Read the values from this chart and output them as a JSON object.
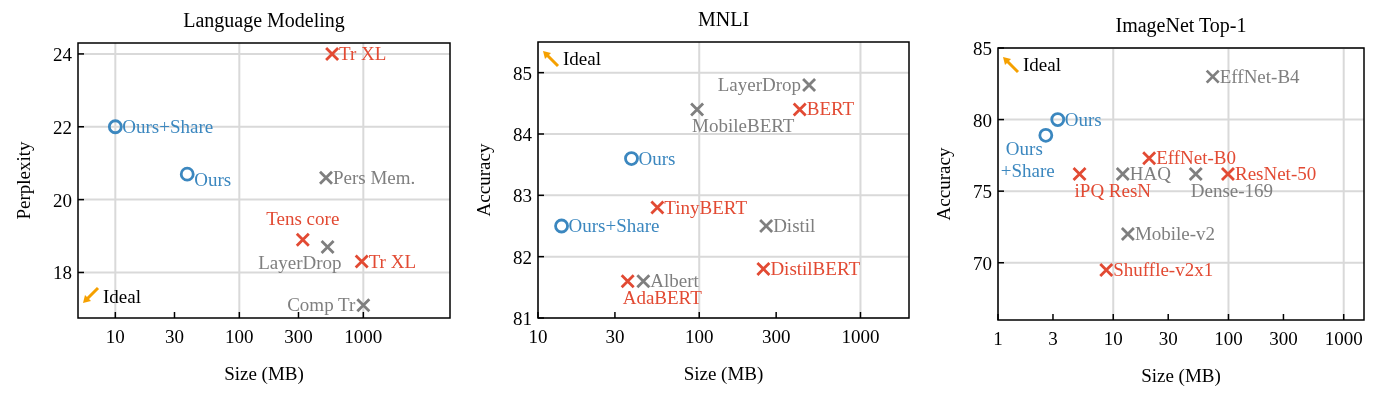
{
  "chart_data": [
    {
      "type": "scatter",
      "title": "Language Modeling",
      "xlabel": "Size (MB)",
      "ylabel": "Perplexity",
      "log": "x",
      "xlim": [
        5,
        5000
      ],
      "ylim": [
        16.75,
        24.3
      ],
      "xticks": [
        10,
        30,
        100,
        300,
        1000
      ],
      "yticks": [
        18,
        20,
        22,
        24
      ],
      "grid": true,
      "series": [
        {
          "name": "Ours+Share",
          "color": "#3b87bf",
          "marker": "circle",
          "x": [
            10
          ],
          "values": [
            22
          ]
        },
        {
          "name": "Ours",
          "color": "#3b87bf",
          "marker": "circle",
          "x": [
            38
          ],
          "values": [
            20.7
          ]
        },
        {
          "name": "Tr XL",
          "color": "#e24a33",
          "marker": "cross",
          "x": [
            560
          ],
          "values": [
            24
          ]
        },
        {
          "name": "Pers Mem.",
          "color": "#7f7f7f",
          "marker": "cross",
          "x": [
            500
          ],
          "values": [
            20.6
          ]
        },
        {
          "name": "Tens core",
          "color": "#e24a33",
          "marker": "cross",
          "x": [
            325
          ],
          "values": [
            18.9
          ]
        },
        {
          "name": "LayerDrop",
          "color": "#7f7f7f",
          "marker": "cross",
          "x": [
            515
          ],
          "values": [
            18.7
          ]
        },
        {
          "name": "Tr XL",
          "color": "#e24a33",
          "marker": "cross",
          "x": [
            970
          ],
          "values": [
            18.3
          ]
        },
        {
          "name": "Comp Tr",
          "color": "#7f7f7f",
          "marker": "cross",
          "x": [
            1000
          ],
          "values": [
            17.1
          ]
        }
      ],
      "annotations": [
        "Ideal"
      ]
    },
    {
      "type": "scatter",
      "title": "MNLI",
      "xlabel": "Size (MB)",
      "ylabel": "Accuracy",
      "log": "x",
      "xlim": [
        10,
        2000
      ],
      "ylim": [
        81,
        85.5
      ],
      "xticks": [
        10,
        30,
        100,
        300,
        1000
      ],
      "yticks": [
        81,
        82,
        83,
        84,
        85
      ],
      "grid": true,
      "series": [
        {
          "name": "Ours+Share",
          "color": "#3b87bf",
          "marker": "circle",
          "x": [
            14
          ],
          "values": [
            82.5
          ]
        },
        {
          "name": "Ours",
          "color": "#3b87bf",
          "marker": "circle",
          "x": [
            38
          ],
          "values": [
            83.6
          ]
        },
        {
          "name": "TinyBERT",
          "color": "#e24a33",
          "marker": "cross",
          "x": [
            55
          ],
          "values": [
            82.8
          ]
        },
        {
          "name": "AdaBERT",
          "color": "#e24a33",
          "marker": "cross",
          "x": [
            36
          ],
          "values": [
            81.6
          ]
        },
        {
          "name": "Albert",
          "color": "#7f7f7f",
          "marker": "cross",
          "x": [
            45
          ],
          "values": [
            81.6
          ]
        },
        {
          "name": "MobileBERT",
          "color": "#7f7f7f",
          "marker": "cross",
          "x": [
            97
          ],
          "values": [
            84.4
          ]
        },
        {
          "name": "LayerDrop",
          "color": "#7f7f7f",
          "marker": "cross",
          "x": [
            480
          ],
          "values": [
            84.8
          ]
        },
        {
          "name": "BERT",
          "color": "#e24a33",
          "marker": "cross",
          "x": [
            420
          ],
          "values": [
            84.4
          ]
        },
        {
          "name": "Distil",
          "color": "#7f7f7f",
          "marker": "cross",
          "x": [
            260
          ],
          "values": [
            82.5
          ]
        },
        {
          "name": "DistilBERT",
          "color": "#e24a33",
          "marker": "cross",
          "x": [
            250
          ],
          "values": [
            81.8
          ]
        }
      ],
      "annotations": [
        "Ideal"
      ]
    },
    {
      "type": "scatter",
      "title": "ImageNet Top-1",
      "xlabel": "Size (MB)",
      "ylabel": "Accuracy",
      "log": "x",
      "xlim": [
        1,
        1500
      ],
      "ylim": [
        66,
        85
      ],
      "xticks": [
        1,
        3,
        10,
        30,
        100,
        300,
        1000
      ],
      "yticks": [
        70,
        75,
        80,
        85
      ],
      "grid": true,
      "series": [
        {
          "name": "Ours",
          "color": "#3b87bf",
          "marker": "circle",
          "x": [
            3.3
          ],
          "values": [
            80.0
          ]
        },
        {
          "name": "Ours+Share",
          "color": "#3b87bf",
          "marker": "circle",
          "x": [
            2.6
          ],
          "values": [
            78.9
          ]
        },
        {
          "name": "iPQ ResN",
          "color": "#e24a33",
          "marker": "cross",
          "x": [
            5.1
          ],
          "values": [
            76.2
          ]
        },
        {
          "name": "EffNet-B0",
          "color": "#e24a33",
          "marker": "cross",
          "x": [
            20.5
          ],
          "values": [
            77.3
          ]
        },
        {
          "name": "HAQ",
          "color": "#7f7f7f",
          "marker": "cross",
          "x": [
            12.1
          ],
          "values": [
            76.2
          ]
        },
        {
          "name": "Dense-169",
          "color": "#7f7f7f",
          "marker": "cross",
          "x": [
            52
          ],
          "values": [
            76.2
          ]
        },
        {
          "name": "ResNet-50",
          "color": "#e24a33",
          "marker": "cross",
          "x": [
            99
          ],
          "values": [
            76.2
          ]
        },
        {
          "name": "EffNet-B4",
          "color": "#7f7f7f",
          "marker": "cross",
          "x": [
            73
          ],
          "values": [
            83.0
          ]
        },
        {
          "name": "Mobile-v2",
          "color": "#7f7f7f",
          "marker": "cross",
          "x": [
            13.4
          ],
          "values": [
            72.0
          ]
        },
        {
          "name": "Shuffle-v2x1",
          "color": "#e24a33",
          "marker": "cross",
          "x": [
            8.7
          ],
          "values": [
            69.5
          ]
        }
      ],
      "annotations": [
        "Ideal"
      ]
    }
  ]
}
